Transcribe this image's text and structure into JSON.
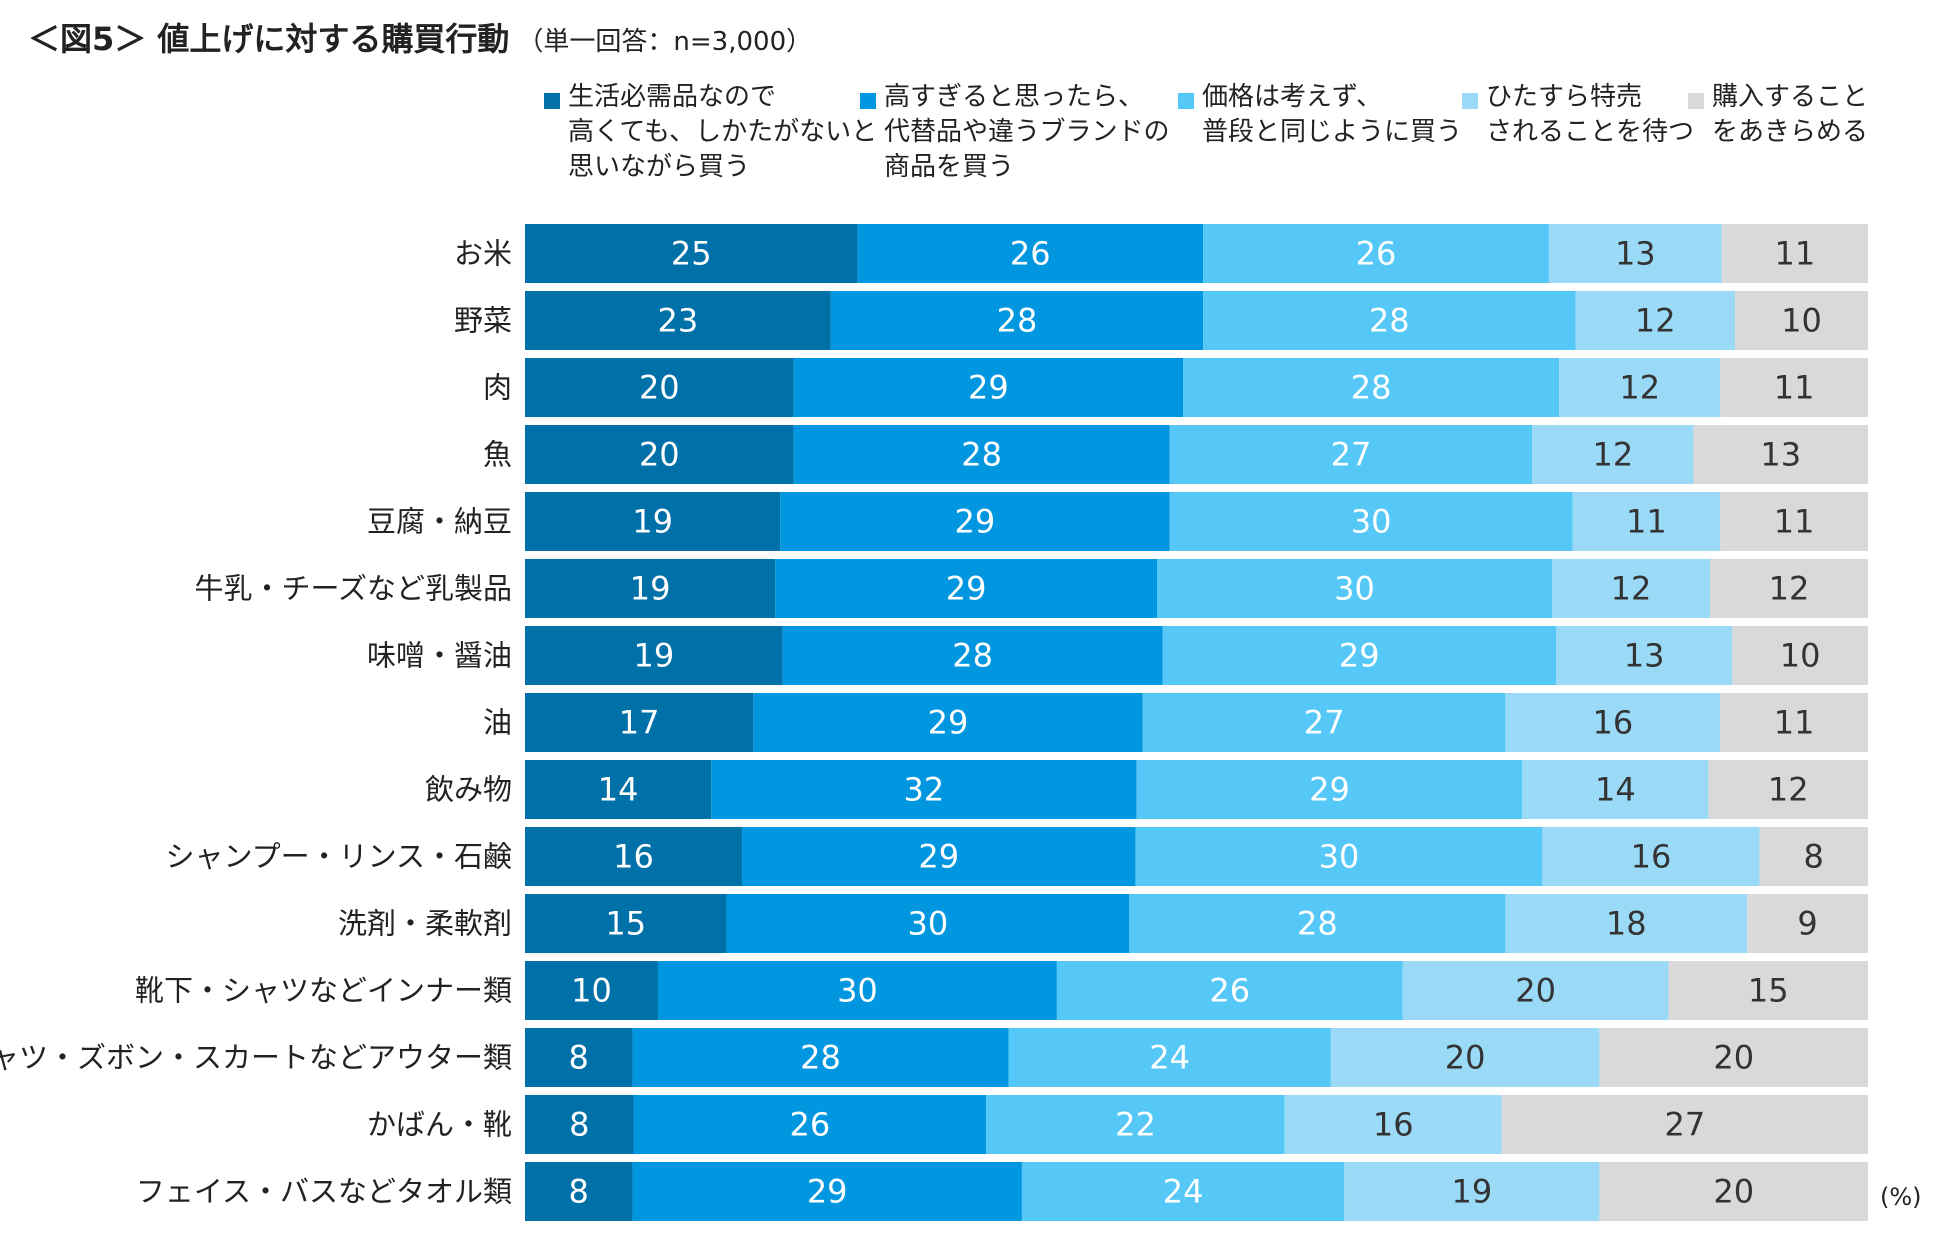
{
  "chart_data": {
    "type": "bar",
    "orientation": "horizontal",
    "stacked": true,
    "title": "＜図5＞ 値上げに対する購買行動",
    "subtitle": "（単一回答：n=3,000）",
    "unit": "(%)",
    "legend_position": "top",
    "xlim": [
      0,
      100
    ],
    "categories": [
      "お米",
      "野菜",
      "肉",
      "魚",
      "豆腐・納豆",
      "牛乳・チーズなど乳製品",
      "味噌・醤油",
      "油",
      "飲み物",
      "シャンプー・リンス・石鹸",
      "洗剤・柔軟剤",
      "靴下・シャツなどインナー類",
      "シャツ・ズボン・スカートなどアウター類",
      "かばん・靴",
      "フェイス・バスなどタオル類"
    ],
    "series": [
      {
        "name": "生活必需品なので\n高くても、しかたがないと\n思いながら買う",
        "color": "#0070a8",
        "values": [
          25,
          23,
          20,
          20,
          19,
          19,
          19,
          17,
          14,
          16,
          15,
          10,
          8,
          8,
          8
        ]
      },
      {
        "name": "高すぎると思ったら、\n代替品や違うブランドの\n商品を買う",
        "color": "#0097e0",
        "values": [
          26,
          28,
          29,
          28,
          29,
          29,
          28,
          29,
          32,
          29,
          30,
          30,
          28,
          26,
          29
        ]
      },
      {
        "name": "価格は考えず、\n普段と同じように買う",
        "color": "#55c8f7",
        "values": [
          26,
          28,
          28,
          27,
          30,
          30,
          29,
          27,
          29,
          30,
          28,
          26,
          24,
          22,
          24
        ]
      },
      {
        "name": "ひたすら特売\nされることを待つ",
        "color": "#9bdaf7",
        "values": [
          13,
          12,
          12,
          12,
          11,
          12,
          13,
          16,
          14,
          16,
          18,
          20,
          20,
          16,
          19
        ]
      },
      {
        "name": "購入すること\nをあきらめる",
        "color": "#d9d9d9",
        "values": [
          11,
          10,
          11,
          13,
          11,
          12,
          10,
          11,
          12,
          8,
          9,
          15,
          20,
          27,
          20
        ]
      }
    ]
  }
}
